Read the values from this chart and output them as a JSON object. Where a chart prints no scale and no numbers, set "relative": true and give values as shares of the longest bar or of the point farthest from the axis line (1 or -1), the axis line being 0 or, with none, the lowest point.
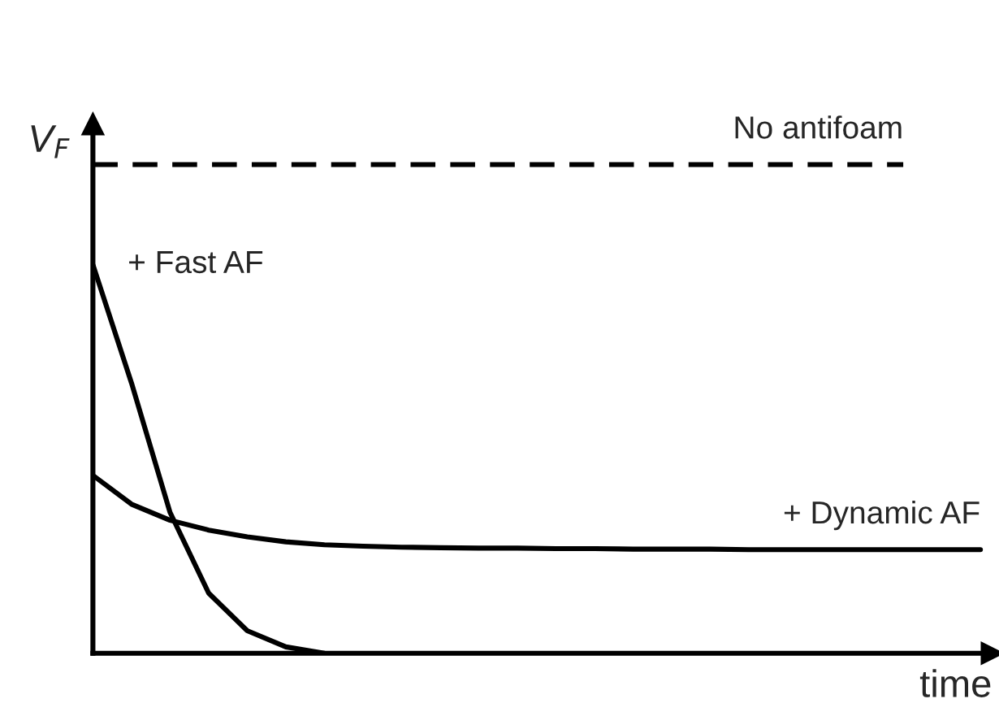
{
  "chart_data": {
    "type": "line",
    "relative": true,
    "xlabel": "time",
    "ylabel": "V$_{F}$",
    "legend": false,
    "categories": [
      null,
      null,
      null,
      null,
      null,
      null,
      null,
      null,
      null,
      null,
      null,
      null,
      null,
      null,
      null,
      null,
      null,
      null,
      null,
      null,
      null,
      null,
      null,
      null
    ],
    "series": [
      {
        "name": "No antifoam",
        "color": "#000000",
        "line_style": "dashed",
        "values": [
          1,
          1,
          1,
          1,
          1,
          1,
          1,
          1,
          1,
          1,
          1,
          1,
          1,
          1,
          1,
          1,
          1,
          1,
          1,
          1,
          1,
          1,
          null,
          null
        ]
      },
      {
        "name": "+ Fast AF",
        "color": "#000000",
        "line_style": "solid",
        "values": [
          0.795,
          0.553,
          0.288,
          0.123,
          0.046,
          0.013,
          0,
          null,
          null,
          null,
          null,
          null,
          null,
          null,
          null,
          null,
          null,
          null,
          null,
          null,
          null,
          null,
          null,
          null
        ]
      },
      {
        "name": "+ Dynamic AF",
        "color": "#000000",
        "line_style": "solid",
        "values": [
          0.364,
          0.305,
          0.272,
          0.252,
          0.238,
          0.228,
          0.222,
          0.219,
          0.217,
          0.216,
          0.215,
          0.215,
          0.214,
          0.214,
          0.213,
          0.213,
          0.213,
          0.212,
          0.212,
          0.212,
          0.212,
          0.212,
          0.212,
          0.212
        ]
      }
    ]
  }
}
